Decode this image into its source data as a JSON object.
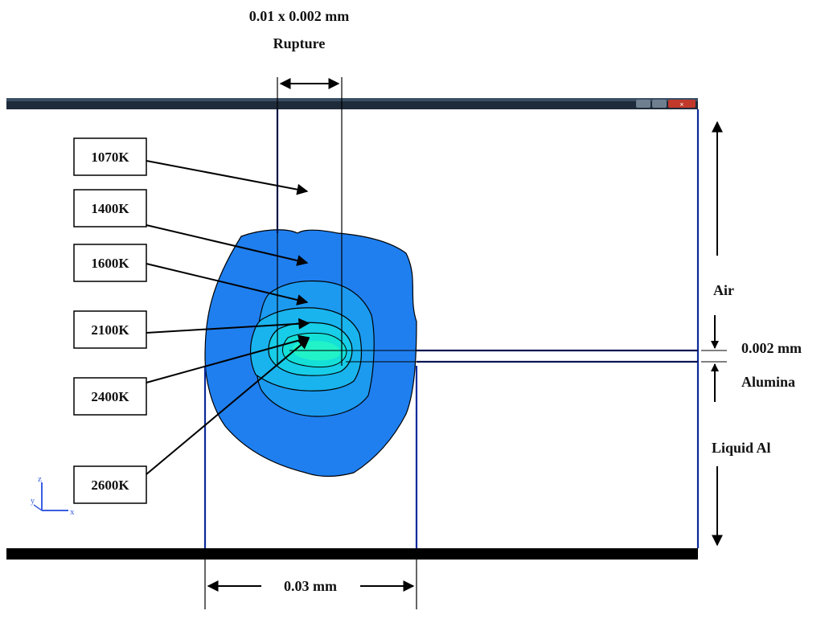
{
  "header": {
    "dimension_label": "0.01 x 0.002 mm",
    "caption": "Rupture"
  },
  "window": {
    "title": "",
    "controls": [
      "minimize",
      "maximize",
      "close"
    ]
  },
  "temperature_labels": [
    {
      "text": "1070K"
    },
    {
      "text": "1400K"
    },
    {
      "text": "1600K"
    },
    {
      "text": "2100K"
    },
    {
      "text": "2400K"
    },
    {
      "text": "2600K"
    }
  ],
  "regions": {
    "air": "Air",
    "thickness": "0.002 mm",
    "alumina": "Alumina",
    "liquid": "Liquid  Al"
  },
  "bottom_dimension": "0.03 mm",
  "axis_triad": {
    "z": "z",
    "y": "y",
    "x": "x"
  },
  "colors": {
    "outer_contour": "#1f7fef",
    "contour_2": "#1c9af0",
    "contour_3": "#19b4ee",
    "contour_4": "#17cde8",
    "contour_5": "#14e0d8",
    "core": "#22f2c8",
    "frame_line": "#0b2a9c",
    "window_bar": "#1e2b3a"
  }
}
